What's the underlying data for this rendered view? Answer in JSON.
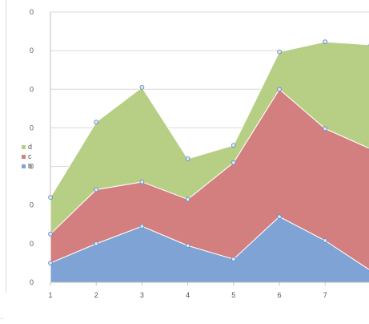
{
  "chart_data": {
    "type": "area",
    "stacked": true,
    "x": [
      1,
      2,
      3,
      4,
      5,
      6,
      7,
      8
    ],
    "x_tick_labels": [
      "1",
      "2",
      "3",
      "4",
      "5",
      "6",
      "7",
      ""
    ],
    "y_tick_labels": [
      "0",
      "0",
      "0",
      "0",
      "0",
      "0",
      "0",
      "0"
    ],
    "ylim": [
      0,
      7
    ],
    "grid": true,
    "legend": "left",
    "series": [
      {
        "name": "b",
        "values": [
          0.5,
          1.0,
          1.45,
          0.95,
          0.6,
          1.7,
          1.08,
          0.3
        ],
        "color": "#7fa3d4"
      },
      {
        "name": "c",
        "values": [
          0.75,
          1.4,
          1.15,
          1.2,
          2.5,
          3.3,
          2.9,
          3.15
        ],
        "color": "#d47f7f"
      },
      {
        "name": "d",
        "values": [
          0.95,
          1.75,
          2.45,
          1.05,
          0.45,
          0.97,
          2.25,
          2.7
        ],
        "color": "#b7cf84"
      }
    ],
    "marker_color": "#dbe8f5",
    "marker_stroke": "#5f86c2",
    "grid_color": "#d9d9d9",
    "axis_color": "#bfbfbf"
  }
}
